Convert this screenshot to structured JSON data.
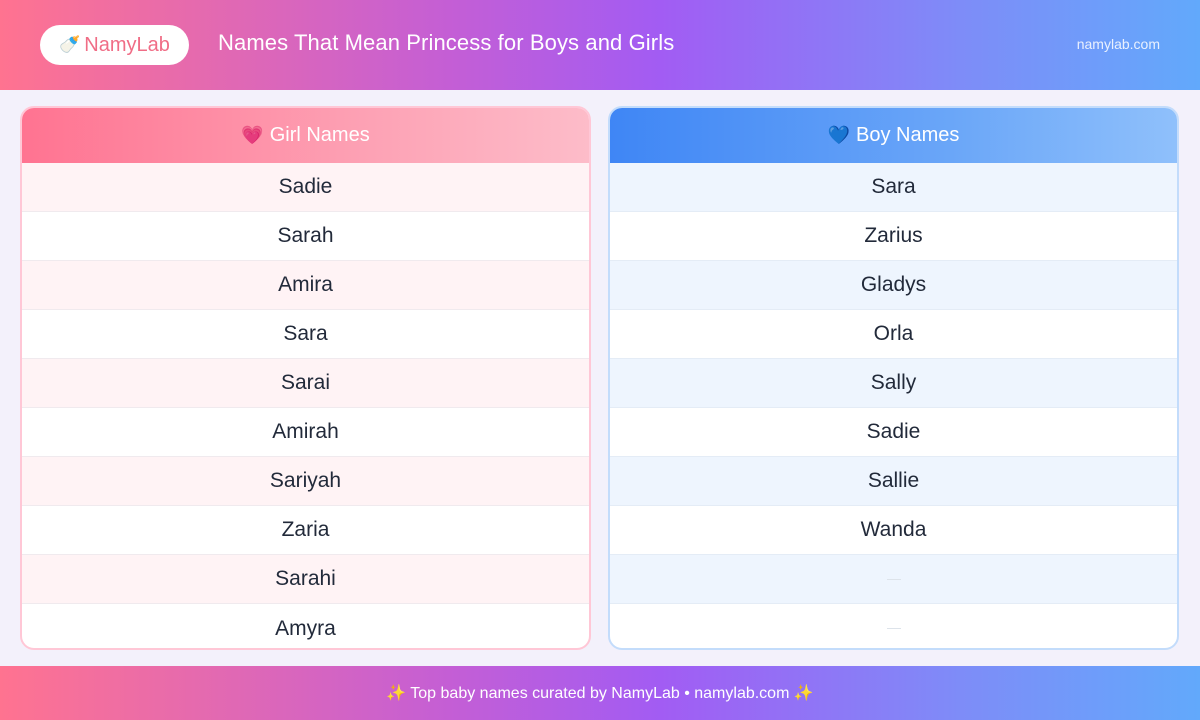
{
  "header": {
    "brand_icon": "🍼",
    "brand_name": "NamyLab",
    "title": "Names That Mean Princess for Boys and Girls",
    "site": "namylab.com"
  },
  "girls": {
    "icon": "💗",
    "heading": "Girl Names",
    "names": [
      "Sadie",
      "Sarah",
      "Amira",
      "Sara",
      "Sarai",
      "Amirah",
      "Sariyah",
      "Zaria",
      "Sarahi",
      "Amyra"
    ]
  },
  "boys": {
    "icon": "💙",
    "heading": "Boy Names",
    "names": [
      "Sara",
      "Zarius",
      "Gladys",
      "Orla",
      "Sally",
      "Sadie",
      "Sallie",
      "Wanda",
      "",
      ""
    ]
  },
  "footer": {
    "text": "✨ Top baby names curated by NamyLab • namylab.com ✨"
  },
  "colors": {
    "girl_accent": "#ff7391",
    "boy_accent": "#3f86f5",
    "brand_text": "#f06d86"
  }
}
